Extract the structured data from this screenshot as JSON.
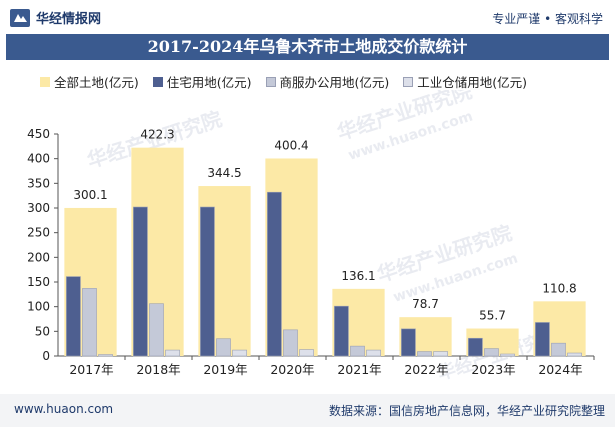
{
  "header": {
    "brand": "华经情报网",
    "tagline": "专业严谨 • 客观科学"
  },
  "footer": {
    "website": "www.huaon.com",
    "source": "数据来源：国信房地产信息网，华经产业研究院整理"
  },
  "watermark": {
    "line1": "华经产业研究院",
    "line2": "www.huaon.com"
  },
  "colors": {
    "title_bg": "#3a5a8f",
    "all_land": "#fce9a6",
    "residential": "#4e5f90",
    "commercial": "#c4c9d8",
    "industrial": "#dde0ea"
  },
  "chart_data": {
    "type": "bar",
    "title": "2017-2024年乌鲁木齐市土地成交价款统计",
    "categories": [
      "2017年",
      "2018年",
      "2019年",
      "2020年",
      "2021年",
      "2022年",
      "2023年",
      "2024年"
    ],
    "series": [
      {
        "name": "全部土地(亿元)",
        "values": [
          300.1,
          422.3,
          344.5,
          400.4,
          136.1,
          78.7,
          55.7,
          110.8
        ],
        "labels": [
          "300.1",
          "422.3",
          "344.5",
          "400.4",
          "136.1",
          "78.7",
          "55.7",
          "110.8"
        ]
      },
      {
        "name": "住宅用地(亿元)",
        "values": [
          161,
          302,
          302,
          332,
          101,
          55,
          36,
          68
        ]
      },
      {
        "name": "商服办公用地(亿元)",
        "values": [
          137,
          106,
          35,
          53,
          20,
          9,
          15,
          26
        ]
      },
      {
        "name": "工业仓储用地(亿元)",
        "values": [
          3,
          12,
          12,
          13,
          12,
          9,
          4,
          6
        ]
      }
    ],
    "yticks": [
      "0",
      "50",
      "100",
      "150",
      "200",
      "250",
      "300",
      "350",
      "400",
      "450"
    ],
    "ylim": [
      0,
      450
    ],
    "grid": false,
    "legend_position": "top"
  }
}
